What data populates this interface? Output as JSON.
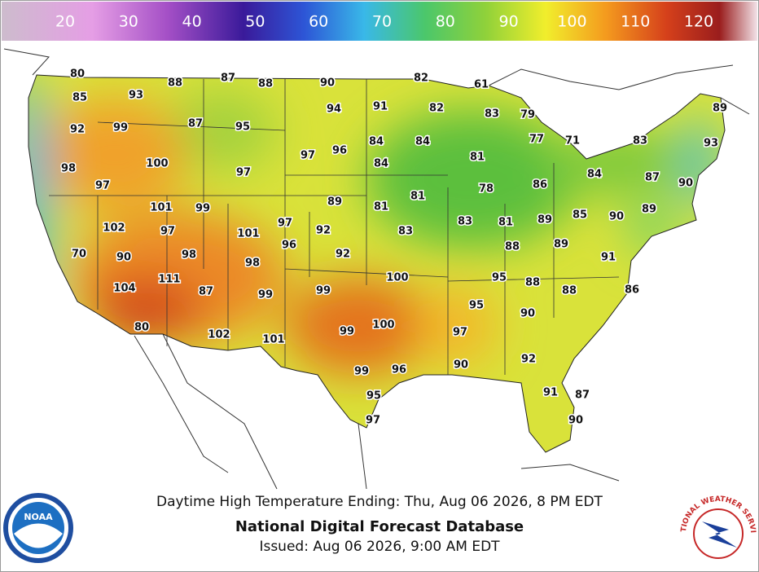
{
  "scale": {
    "ticks": [
      20,
      30,
      40,
      50,
      60,
      70,
      80,
      90,
      100,
      110,
      120
    ]
  },
  "labels": [
    80,
    85,
    93,
    88,
    87,
    88,
    90,
    82,
    61,
    92,
    99,
    87,
    95,
    94,
    91,
    82,
    83,
    79,
    89,
    77,
    71,
    83,
    93,
    98,
    100,
    97,
    96,
    84,
    84,
    81,
    97,
    97,
    84,
    84,
    87,
    90,
    86,
    78,
    101,
    99,
    89,
    81,
    81,
    83,
    81,
    89,
    85,
    90,
    89,
    102,
    97,
    101,
    97,
    92,
    96,
    83,
    88,
    89,
    70,
    90,
    98,
    98,
    92,
    91,
    100,
    95,
    88,
    88,
    86,
    104,
    111,
    87,
    99,
    99,
    95,
    90,
    80,
    102,
    101,
    99,
    100,
    97,
    92,
    90,
    99,
    96,
    91,
    87,
    95,
    90,
    97
  ],
  "caption": {
    "subtitle": "Daytime High Temperature Ending: Thu, Aug 06 2026, 8 PM EDT",
    "title": "National Digital Forecast Database",
    "issued": "Issued: Aug 06 2026, 9:00 AM EDT"
  },
  "logos": {
    "noaa": "NOAA",
    "nws": "NATIONAL WEATHER SERVICE"
  }
}
